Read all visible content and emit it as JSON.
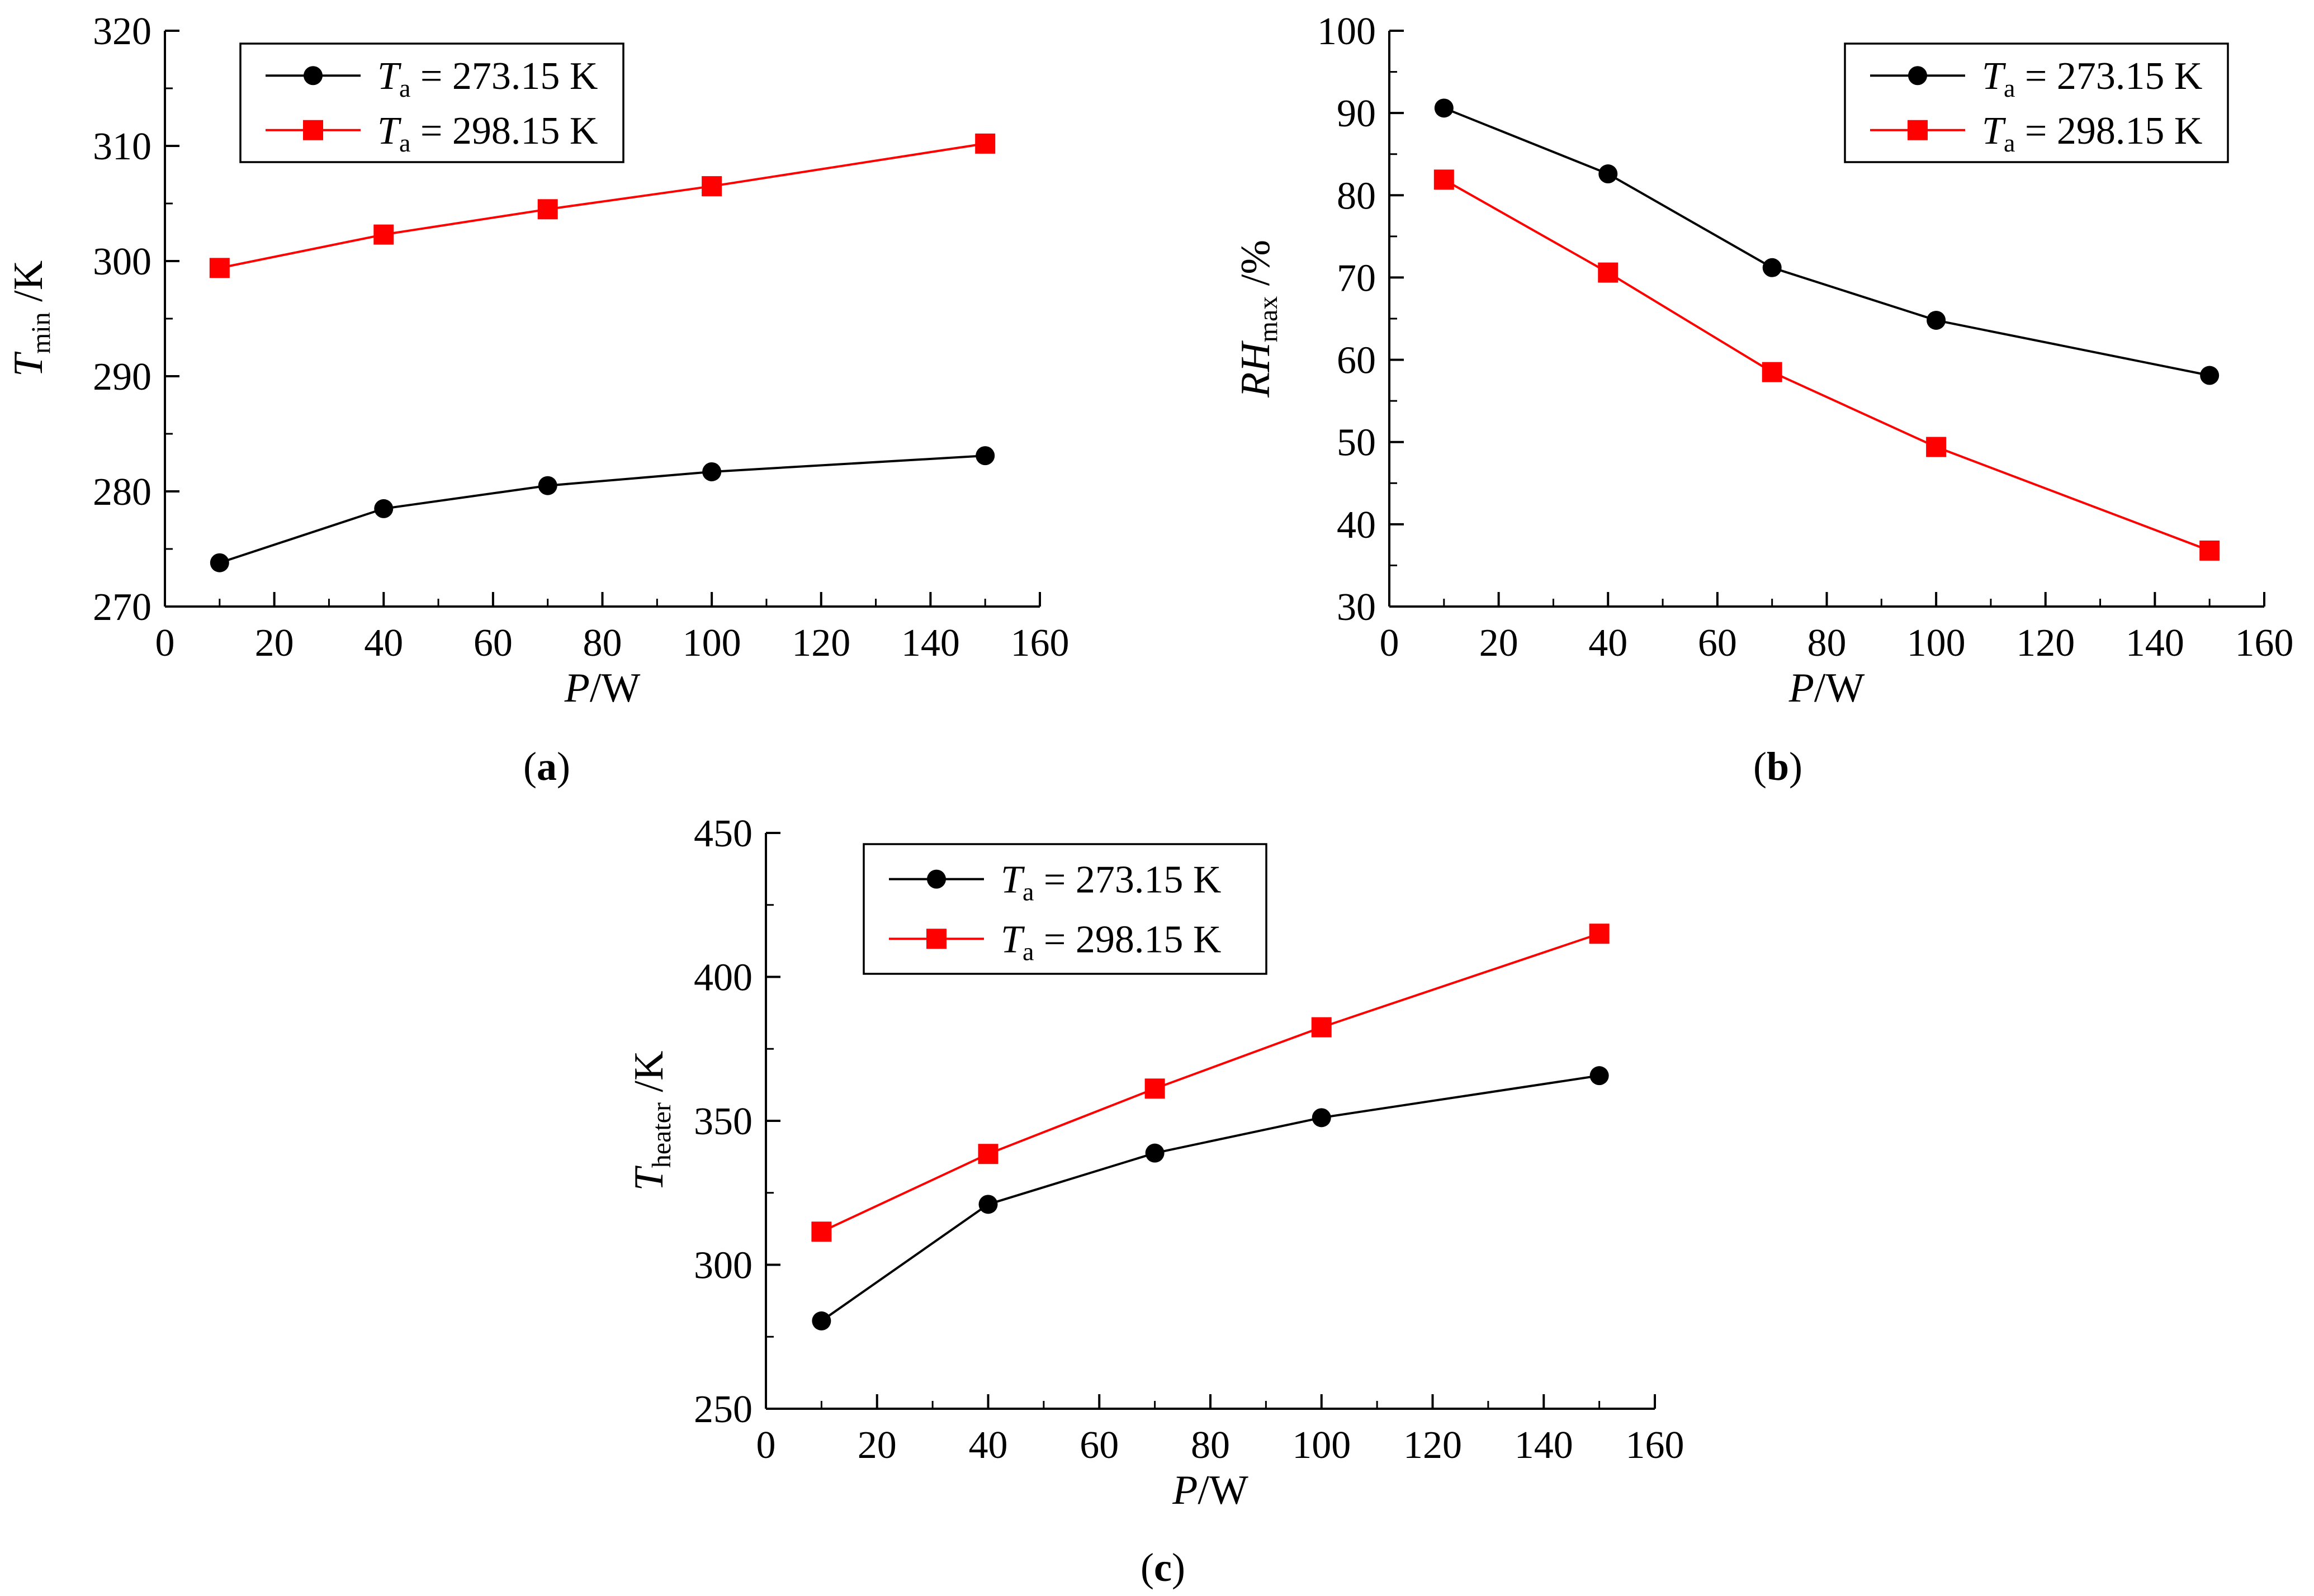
{
  "figure": {
    "colors": {
      "series_black": "#000000",
      "series_red": "#ff0000",
      "axis": "#000000"
    }
  },
  "chart_data": [
    {
      "type": "line",
      "panel_label": "(a)",
      "panel_letter": "a",
      "xlabel": {
        "var": "P",
        "unit": "/W"
      },
      "ylabel": {
        "var": "T",
        "sub": "min",
        "unit": " /K"
      },
      "xlim": [
        0,
        160
      ],
      "ylim": [
        270,
        320
      ],
      "xticks": [
        0,
        20,
        40,
        60,
        80,
        100,
        120,
        140,
        160
      ],
      "xtick_labels": [
        "0",
        "20",
        "40",
        "60",
        "80",
        "100",
        "120",
        "140",
        "160"
      ],
      "yticks": [
        270,
        280,
        290,
        300,
        310,
        320
      ],
      "ytick_labels": [
        "270",
        "280",
        "290",
        "300",
        "310",
        "320"
      ],
      "legend_position": "top-left",
      "x": [
        10,
        40,
        70,
        100,
        150
      ],
      "series": [
        {
          "name": "Ta = 273.15 K",
          "var": "T",
          "sub": "a",
          "rest": " = 273.15 K",
          "marker": "circle",
          "color": "#000000",
          "values": [
            273.8,
            278.5,
            280.5,
            281.7,
            283.1
          ]
        },
        {
          "name": "Ta = 298.15 K",
          "var": "T",
          "sub": "a",
          "rest": " = 298.15 K",
          "marker": "square",
          "color": "#ff0000",
          "values": [
            299.4,
            302.3,
            304.5,
            306.5,
            310.2
          ]
        }
      ]
    },
    {
      "type": "line",
      "panel_label": "(b)",
      "panel_letter": "b",
      "xlabel": {
        "var": "P",
        "unit": "/W"
      },
      "ylabel": {
        "var": "RH",
        "sub": "max",
        "unit": " /%"
      },
      "xlim": [
        0,
        160
      ],
      "ylim": [
        30,
        100
      ],
      "xticks": [
        0,
        20,
        40,
        60,
        80,
        100,
        120,
        140,
        160
      ],
      "xtick_labels": [
        "0",
        "20",
        "40",
        "60",
        "80",
        "100",
        "120",
        "140",
        "160"
      ],
      "yticks": [
        30,
        40,
        50,
        60,
        70,
        80,
        90,
        100
      ],
      "ytick_labels": [
        "30",
        "40",
        "50",
        "60",
        "70",
        "80",
        "90",
        "100"
      ],
      "legend_position": "top-right",
      "x": [
        10,
        40,
        70,
        100,
        150
      ],
      "series": [
        {
          "name": "Ta = 273.15 K",
          "var": "T",
          "sub": "a",
          "rest": " = 273.15 K",
          "marker": "circle",
          "color": "#000000",
          "values": [
            90.6,
            82.6,
            71.2,
            64.8,
            58.1
          ]
        },
        {
          "name": "Ta = 298.15 K",
          "var": "T",
          "sub": "a",
          "rest": " = 298.15 K",
          "marker": "square",
          "color": "#ff0000",
          "values": [
            81.9,
            70.6,
            58.5,
            49.4,
            36.8
          ]
        }
      ]
    },
    {
      "type": "line",
      "panel_label": "(c)",
      "panel_letter": "c",
      "xlabel": {
        "var": "P",
        "unit": "/W"
      },
      "ylabel": {
        "var": "T",
        "sub": "heater",
        "unit": " /K"
      },
      "xlim": [
        0,
        160
      ],
      "ylim": [
        250,
        450
      ],
      "xticks": [
        0,
        20,
        40,
        60,
        80,
        100,
        120,
        140,
        160
      ],
      "xtick_labels": [
        "0",
        "20",
        "40",
        "60",
        "80",
        "100",
        "120",
        "140",
        "160"
      ],
      "yticks": [
        250,
        300,
        350,
        400,
        450
      ],
      "ytick_labels": [
        "250",
        "300",
        "350",
        "400",
        "450"
      ],
      "legend_position": "top-left",
      "x": [
        10,
        40,
        70,
        100,
        150
      ],
      "series": [
        {
          "name": "Ta = 273.15 K",
          "var": "T",
          "sub": "a",
          "rest": " = 273.15 K",
          "marker": "circle",
          "color": "#000000",
          "values": [
            280.5,
            321.0,
            338.8,
            351.1,
            365.7
          ]
        },
        {
          "name": "Ta = 298.15 K",
          "var": "T",
          "sub": "a",
          "rest": " = 298.15 K",
          "marker": "square",
          "color": "#ff0000",
          "values": [
            311.5,
            338.5,
            361.2,
            382.5,
            415.0
          ]
        }
      ]
    }
  ]
}
